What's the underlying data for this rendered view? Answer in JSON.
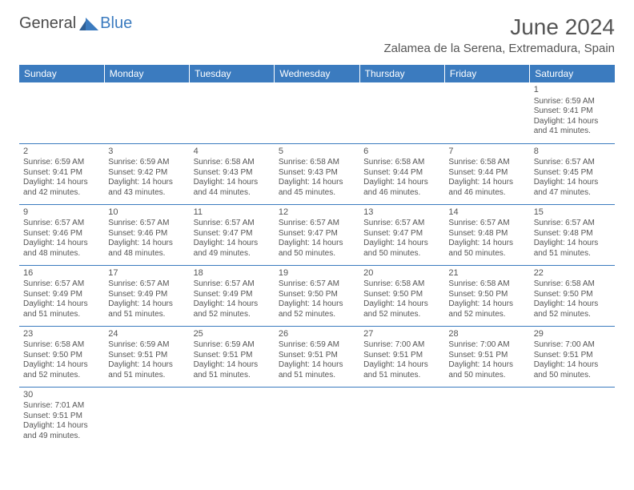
{
  "logo": {
    "word1": "General",
    "word2": "Blue"
  },
  "title": "June 2024",
  "location": "Zalamea de la Serena, Extremadura, Spain",
  "colors": {
    "header_bg": "#3b7bbf",
    "header_text": "#ffffff",
    "border": "#3b7bbf",
    "body_text": "#555555",
    "logo_dark": "#4a4a4a",
    "logo_blue": "#3b7bbf"
  },
  "weekdays": [
    "Sunday",
    "Monday",
    "Tuesday",
    "Wednesday",
    "Thursday",
    "Friday",
    "Saturday"
  ],
  "weeks": [
    [
      null,
      null,
      null,
      null,
      null,
      null,
      {
        "n": "1",
        "sr": "Sunrise: 6:59 AM",
        "ss": "Sunset: 9:41 PM",
        "d1": "Daylight: 14 hours",
        "d2": "and 41 minutes."
      }
    ],
    [
      {
        "n": "2",
        "sr": "Sunrise: 6:59 AM",
        "ss": "Sunset: 9:41 PM",
        "d1": "Daylight: 14 hours",
        "d2": "and 42 minutes."
      },
      {
        "n": "3",
        "sr": "Sunrise: 6:59 AM",
        "ss": "Sunset: 9:42 PM",
        "d1": "Daylight: 14 hours",
        "d2": "and 43 minutes."
      },
      {
        "n": "4",
        "sr": "Sunrise: 6:58 AM",
        "ss": "Sunset: 9:43 PM",
        "d1": "Daylight: 14 hours",
        "d2": "and 44 minutes."
      },
      {
        "n": "5",
        "sr": "Sunrise: 6:58 AM",
        "ss": "Sunset: 9:43 PM",
        "d1": "Daylight: 14 hours",
        "d2": "and 45 minutes."
      },
      {
        "n": "6",
        "sr": "Sunrise: 6:58 AM",
        "ss": "Sunset: 9:44 PM",
        "d1": "Daylight: 14 hours",
        "d2": "and 46 minutes."
      },
      {
        "n": "7",
        "sr": "Sunrise: 6:58 AM",
        "ss": "Sunset: 9:44 PM",
        "d1": "Daylight: 14 hours",
        "d2": "and 46 minutes."
      },
      {
        "n": "8",
        "sr": "Sunrise: 6:57 AM",
        "ss": "Sunset: 9:45 PM",
        "d1": "Daylight: 14 hours",
        "d2": "and 47 minutes."
      }
    ],
    [
      {
        "n": "9",
        "sr": "Sunrise: 6:57 AM",
        "ss": "Sunset: 9:46 PM",
        "d1": "Daylight: 14 hours",
        "d2": "and 48 minutes."
      },
      {
        "n": "10",
        "sr": "Sunrise: 6:57 AM",
        "ss": "Sunset: 9:46 PM",
        "d1": "Daylight: 14 hours",
        "d2": "and 48 minutes."
      },
      {
        "n": "11",
        "sr": "Sunrise: 6:57 AM",
        "ss": "Sunset: 9:47 PM",
        "d1": "Daylight: 14 hours",
        "d2": "and 49 minutes."
      },
      {
        "n": "12",
        "sr": "Sunrise: 6:57 AM",
        "ss": "Sunset: 9:47 PM",
        "d1": "Daylight: 14 hours",
        "d2": "and 50 minutes."
      },
      {
        "n": "13",
        "sr": "Sunrise: 6:57 AM",
        "ss": "Sunset: 9:47 PM",
        "d1": "Daylight: 14 hours",
        "d2": "and 50 minutes."
      },
      {
        "n": "14",
        "sr": "Sunrise: 6:57 AM",
        "ss": "Sunset: 9:48 PM",
        "d1": "Daylight: 14 hours",
        "d2": "and 50 minutes."
      },
      {
        "n": "15",
        "sr": "Sunrise: 6:57 AM",
        "ss": "Sunset: 9:48 PM",
        "d1": "Daylight: 14 hours",
        "d2": "and 51 minutes."
      }
    ],
    [
      {
        "n": "16",
        "sr": "Sunrise: 6:57 AM",
        "ss": "Sunset: 9:49 PM",
        "d1": "Daylight: 14 hours",
        "d2": "and 51 minutes."
      },
      {
        "n": "17",
        "sr": "Sunrise: 6:57 AM",
        "ss": "Sunset: 9:49 PM",
        "d1": "Daylight: 14 hours",
        "d2": "and 51 minutes."
      },
      {
        "n": "18",
        "sr": "Sunrise: 6:57 AM",
        "ss": "Sunset: 9:49 PM",
        "d1": "Daylight: 14 hours",
        "d2": "and 52 minutes."
      },
      {
        "n": "19",
        "sr": "Sunrise: 6:57 AM",
        "ss": "Sunset: 9:50 PM",
        "d1": "Daylight: 14 hours",
        "d2": "and 52 minutes."
      },
      {
        "n": "20",
        "sr": "Sunrise: 6:58 AM",
        "ss": "Sunset: 9:50 PM",
        "d1": "Daylight: 14 hours",
        "d2": "and 52 minutes."
      },
      {
        "n": "21",
        "sr": "Sunrise: 6:58 AM",
        "ss": "Sunset: 9:50 PM",
        "d1": "Daylight: 14 hours",
        "d2": "and 52 minutes."
      },
      {
        "n": "22",
        "sr": "Sunrise: 6:58 AM",
        "ss": "Sunset: 9:50 PM",
        "d1": "Daylight: 14 hours",
        "d2": "and 52 minutes."
      }
    ],
    [
      {
        "n": "23",
        "sr": "Sunrise: 6:58 AM",
        "ss": "Sunset: 9:50 PM",
        "d1": "Daylight: 14 hours",
        "d2": "and 52 minutes."
      },
      {
        "n": "24",
        "sr": "Sunrise: 6:59 AM",
        "ss": "Sunset: 9:51 PM",
        "d1": "Daylight: 14 hours",
        "d2": "and 51 minutes."
      },
      {
        "n": "25",
        "sr": "Sunrise: 6:59 AM",
        "ss": "Sunset: 9:51 PM",
        "d1": "Daylight: 14 hours",
        "d2": "and 51 minutes."
      },
      {
        "n": "26",
        "sr": "Sunrise: 6:59 AM",
        "ss": "Sunset: 9:51 PM",
        "d1": "Daylight: 14 hours",
        "d2": "and 51 minutes."
      },
      {
        "n": "27",
        "sr": "Sunrise: 7:00 AM",
        "ss": "Sunset: 9:51 PM",
        "d1": "Daylight: 14 hours",
        "d2": "and 51 minutes."
      },
      {
        "n": "28",
        "sr": "Sunrise: 7:00 AM",
        "ss": "Sunset: 9:51 PM",
        "d1": "Daylight: 14 hours",
        "d2": "and 50 minutes."
      },
      {
        "n": "29",
        "sr": "Sunrise: 7:00 AM",
        "ss": "Sunset: 9:51 PM",
        "d1": "Daylight: 14 hours",
        "d2": "and 50 minutes."
      }
    ],
    [
      {
        "n": "30",
        "sr": "Sunrise: 7:01 AM",
        "ss": "Sunset: 9:51 PM",
        "d1": "Daylight: 14 hours",
        "d2": "and 49 minutes."
      },
      null,
      null,
      null,
      null,
      null,
      null
    ]
  ]
}
